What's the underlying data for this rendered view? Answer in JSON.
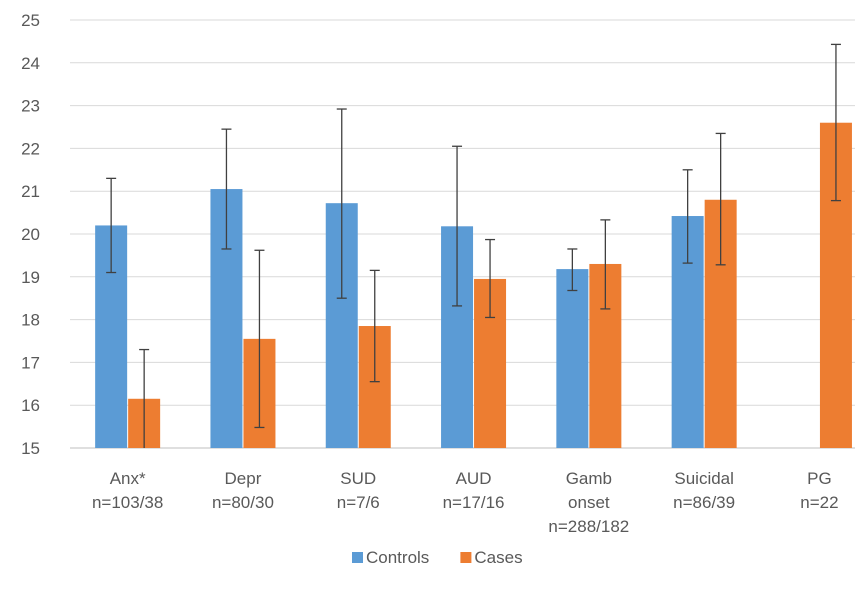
{
  "chart_data": {
    "type": "bar",
    "categories": [
      [
        "Anx*",
        "n=103/38"
      ],
      [
        "Depr",
        "n=80/30"
      ],
      [
        "SUD",
        "n=7/6"
      ],
      [
        "AUD",
        "n=17/16"
      ],
      [
        "Gamb",
        "onset",
        "n=288/182"
      ],
      [
        "Suicidal",
        "n=86/39"
      ],
      [
        "PG",
        "n=22"
      ]
    ],
    "series": [
      {
        "name": "Controls",
        "color": "#5B9BD5",
        "values": [
          20.2,
          21.05,
          20.72,
          20.18,
          19.18,
          20.42,
          null
        ],
        "error_low": [
          19.1,
          19.65,
          18.5,
          18.32,
          18.68,
          19.32,
          null
        ],
        "error_high": [
          21.3,
          22.45,
          22.92,
          22.05,
          19.65,
          21.5,
          null
        ]
      },
      {
        "name": "Cases",
        "color": "#ED7D31",
        "values": [
          16.15,
          17.55,
          17.85,
          18.95,
          19.3,
          20.8,
          22.6
        ],
        "error_low": [
          15.0,
          15.48,
          16.55,
          18.05,
          18.25,
          19.28,
          20.78
        ],
        "error_high": [
          17.3,
          19.62,
          19.15,
          19.87,
          20.33,
          22.35,
          24.43
        ]
      }
    ],
    "yticks": [
      15,
      16,
      17,
      18,
      19,
      20,
      21,
      22,
      23,
      24,
      25
    ],
    "ylim": [
      15,
      25
    ],
    "grid": true,
    "legend_position": "bottom",
    "error_bar_color": "#404040",
    "grid_color": "#D9D9D9"
  }
}
